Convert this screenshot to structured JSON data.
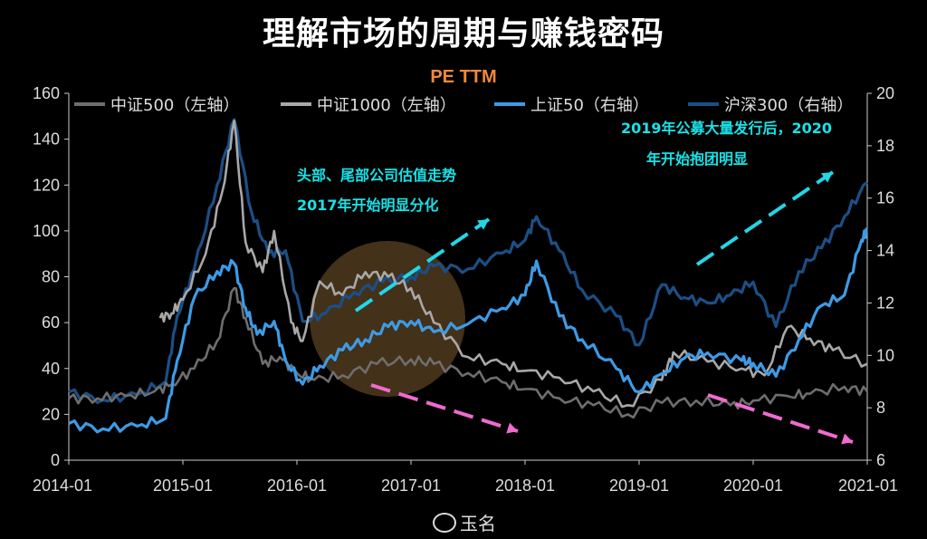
{
  "title": "理解市场的周期与赚钱密码",
  "watermark": "玉名",
  "annotations": {
    "left_line1": "头部、尾部公司估值走势",
    "left_line2": "2017年开始明显分化",
    "right_line1": "2019年公募大量发行后，2020",
    "right_line2": "年开始抱团明显"
  },
  "colors": {
    "zz500": "#6e6e6e",
    "zz1000": "#a8a8a8",
    "sz50": "#3d9be6",
    "hs300": "#1b4f86",
    "annotation_text": "#17e3e8",
    "up_arrow": "#22d6e6",
    "down_arrow": "#f06ad0",
    "highlight": "#7a5a2e"
  },
  "chart_data": {
    "type": "line",
    "title": "PE TTM",
    "x_ticks": [
      "2014-01",
      "2015-01",
      "2016-01",
      "2017-01",
      "2018-01",
      "2019-01",
      "2020-01",
      "2021-01"
    ],
    "y_left": {
      "range": [
        0,
        160
      ],
      "ticks": [
        0,
        20,
        40,
        60,
        80,
        100,
        120,
        140,
        160
      ]
    },
    "y_right": {
      "range": [
        6,
        20
      ],
      "ticks": [
        6,
        8,
        10,
        12,
        14,
        16,
        18,
        20
      ]
    },
    "grid": false,
    "legend_position": "top",
    "series": [
      {
        "name": "中证500（左轴）",
        "axis": "left",
        "x": [
          2014.0,
          2014.25,
          2014.5,
          2014.75,
          2014.9,
          2015.1,
          2015.3,
          2015.45,
          2015.55,
          2015.7,
          2015.85,
          2016.0,
          2016.15,
          2016.4,
          2016.7,
          2017.0,
          2017.2,
          2017.5,
          2017.8,
          2018.0,
          2018.3,
          2018.6,
          2018.9,
          2019.2,
          2019.5,
          2019.8,
          2020.0,
          2020.3,
          2020.5,
          2020.8,
          2021.0
        ],
        "y": [
          27,
          27,
          28,
          30,
          33,
          40,
          52,
          75,
          62,
          42,
          45,
          38,
          35,
          37,
          42,
          44,
          42,
          38,
          34,
          31,
          27,
          24,
          20,
          25,
          26,
          24,
          26,
          28,
          29,
          32,
          30
        ]
      },
      {
        "name": "中证1000（左轴）",
        "axis": "left",
        "x": [
          2014.8,
          2014.9,
          2015.0,
          2015.2,
          2015.35,
          2015.45,
          2015.55,
          2015.7,
          2015.8,
          2015.95,
          2016.05,
          2016.2,
          2016.4,
          2016.6,
          2016.8,
          2017.0,
          2017.2,
          2017.5,
          2017.8,
          2018.0,
          2018.3,
          2018.6,
          2018.9,
          2019.2,
          2019.3,
          2019.6,
          2019.9,
          2020.1,
          2020.3,
          2020.5,
          2020.7,
          2021.0
        ],
        "y": [
          62,
          64,
          70,
          90,
          118,
          148,
          95,
          82,
          100,
          60,
          52,
          78,
          72,
          82,
          80,
          75,
          60,
          45,
          42,
          39,
          36,
          30,
          24,
          35,
          47,
          43,
          40,
          37,
          58,
          53,
          48,
          42
        ]
      },
      {
        "name": "上证50（右轴）",
        "axis": "right",
        "x": [
          2014.0,
          2014.3,
          2014.6,
          2014.85,
          2014.95,
          2015.1,
          2015.3,
          2015.45,
          2015.55,
          2015.65,
          2015.8,
          2015.9,
          2016.05,
          2016.2,
          2016.4,
          2016.6,
          2016.8,
          2017.0,
          2017.2,
          2017.5,
          2017.8,
          2018.0,
          2018.1,
          2018.3,
          2018.5,
          2018.8,
          2019.0,
          2019.2,
          2019.4,
          2019.6,
          2019.9,
          2020.0,
          2020.2,
          2020.4,
          2020.6,
          2020.8,
          2020.95,
          2021.0
        ],
        "y": [
          7.4,
          7.2,
          7.3,
          7.6,
          9.8,
          12.2,
          13.2,
          13.5,
          11.8,
          10.8,
          11.3,
          9.8,
          8.9,
          9.6,
          10.2,
          10.6,
          11.1,
          11.3,
          10.9,
          11.2,
          11.8,
          12.3,
          13.6,
          11.5,
          10.6,
          9.5,
          8.6,
          9.3,
          9.9,
          10.1,
          9.8,
          9.7,
          9.2,
          10.6,
          11.9,
          12.3,
          14.4,
          14.8
        ]
      },
      {
        "name": "沪深300（右轴）",
        "axis": "right",
        "x": [
          2014.0,
          2014.3,
          2014.6,
          2014.85,
          2014.95,
          2015.1,
          2015.3,
          2015.45,
          2015.6,
          2015.75,
          2015.9,
          2016.05,
          2016.25,
          2016.5,
          2016.75,
          2017.0,
          2017.2,
          2017.5,
          2017.8,
          2018.0,
          2018.1,
          2018.3,
          2018.5,
          2018.8,
          2019.0,
          2019.2,
          2019.4,
          2019.6,
          2019.8,
          2020.0,
          2020.2,
          2020.4,
          2020.6,
          2020.8,
          2021.0
        ],
        "y": [
          8.6,
          8.3,
          8.5,
          9.0,
          11.5,
          13.3,
          16.5,
          19.0,
          15.5,
          13.9,
          14.0,
          11.3,
          11.6,
          12.4,
          12.8,
          13.0,
          13.4,
          13.3,
          13.9,
          14.4,
          15.3,
          14.0,
          12.5,
          11.5,
          10.4,
          12.7,
          12.2,
          12.0,
          12.3,
          12.8,
          11.1,
          13.2,
          14.1,
          15.3,
          16.6
        ]
      }
    ]
  }
}
